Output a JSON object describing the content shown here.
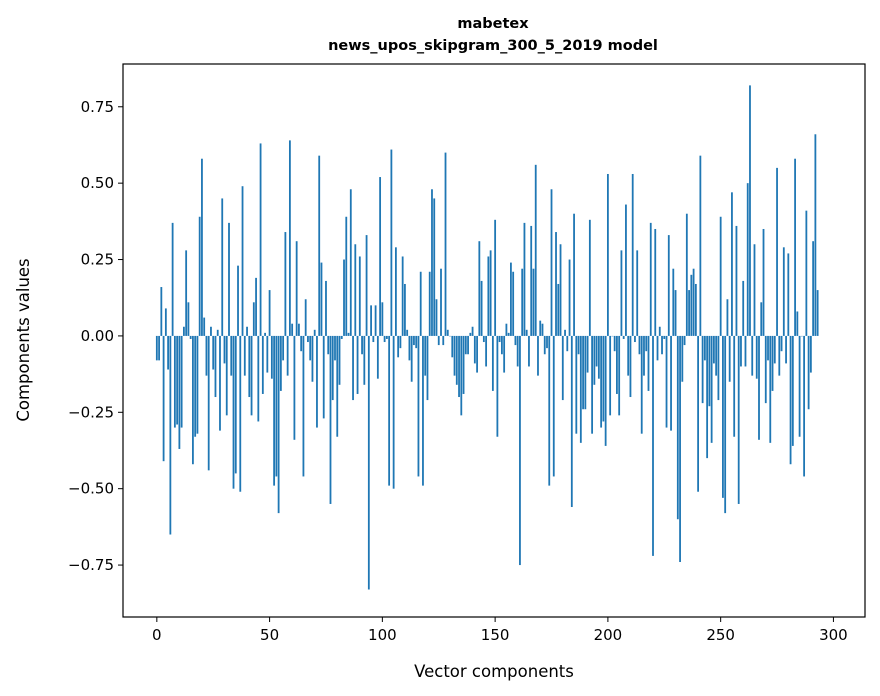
{
  "chart_data": {
    "type": "bar",
    "title": "mabetex",
    "subtitle": "news_upos_skipgram_300_5_2019 model",
    "xlabel": "Vector components",
    "ylabel": "Components values",
    "xlim": [
      -15,
      314
    ],
    "ylim": [
      -0.92,
      0.89
    ],
    "xticks": [
      0,
      50,
      100,
      150,
      200,
      250,
      300
    ],
    "yticks": [
      -0.75,
      -0.5,
      -0.25,
      0.0,
      0.25,
      0.5,
      0.75
    ],
    "ytick_labels": [
      "−0.75",
      "−0.50",
      "−0.25",
      "0.00",
      "0.25",
      "0.50",
      "0.75"
    ],
    "bar_color": "#1f77b4",
    "x_start": 0,
    "values": [
      -0.08,
      -0.08,
      0.16,
      -0.41,
      0.09,
      -0.11,
      -0.65,
      0.37,
      -0.3,
      -0.29,
      -0.37,
      -0.3,
      0.03,
      0.28,
      0.11,
      -0.01,
      -0.42,
      -0.33,
      -0.32,
      0.39,
      0.58,
      0.06,
      -0.13,
      -0.44,
      0.03,
      -0.11,
      -0.2,
      0.02,
      -0.31,
      0.45,
      -0.09,
      -0.26,
      0.37,
      -0.13,
      -0.5,
      -0.45,
      0.23,
      -0.51,
      0.49,
      -0.13,
      0.03,
      -0.2,
      -0.26,
      0.11,
      0.19,
      -0.28,
      0.63,
      -0.19,
      0.01,
      -0.12,
      0.15,
      -0.14,
      -0.49,
      -0.46,
      -0.58,
      -0.18,
      -0.08,
      0.34,
      -0.13,
      0.64,
      0.04,
      -0.34,
      0.31,
      0.04,
      -0.05,
      -0.46,
      0.12,
      -0.02,
      -0.08,
      -0.15,
      0.02,
      -0.3,
      0.59,
      0.24,
      -0.27,
      0.18,
      -0.06,
      -0.55,
      -0.21,
      -0.08,
      -0.33,
      -0.16,
      -0.01,
      0.25,
      0.39,
      0.01,
      0.48,
      -0.21,
      0.3,
      -0.19,
      0.26,
      -0.06,
      -0.16,
      0.33,
      -0.83,
      0.1,
      -0.02,
      0.1,
      -0.14,
      0.52,
      0.11,
      -0.02,
      -0.01,
      -0.49,
      0.61,
      -0.5,
      0.29,
      -0.07,
      -0.04,
      0.26,
      0.17,
      0.02,
      -0.08,
      -0.15,
      -0.03,
      -0.04,
      -0.46,
      0.21,
      -0.49,
      -0.13,
      -0.21,
      0.21,
      0.48,
      0.45,
      0.12,
      -0.03,
      0.22,
      -0.03,
      0.6,
      0.02,
      0.0,
      -0.07,
      -0.13,
      -0.16,
      -0.2,
      -0.26,
      -0.19,
      -0.06,
      -0.06,
      0.01,
      0.03,
      -0.09,
      -0.12,
      0.31,
      0.18,
      -0.02,
      -0.1,
      0.26,
      0.28,
      -0.18,
      0.38,
      -0.33,
      -0.02,
      -0.06,
      -0.12,
      0.04,
      0.01,
      0.24,
      0.21,
      -0.03,
      -0.1,
      -0.75,
      0.22,
      0.37,
      0.02,
      -0.1,
      0.36,
      0.22,
      0.56,
      -0.13,
      0.05,
      0.04,
      -0.06,
      -0.04,
      -0.49,
      0.48,
      -0.46,
      0.34,
      0.17,
      0.3,
      -0.21,
      0.02,
      -0.05,
      0.25,
      -0.56,
      0.4,
      -0.32,
      -0.06,
      -0.35,
      -0.24,
      -0.24,
      -0.12,
      0.38,
      -0.32,
      -0.16,
      -0.1,
      -0.14,
      -0.3,
      -0.28,
      -0.36,
      0.53,
      -0.26,
      0.0,
      -0.05,
      -0.19,
      -0.26,
      0.28,
      -0.01,
      0.43,
      -0.13,
      -0.2,
      0.53,
      -0.02,
      0.28,
      -0.06,
      -0.32,
      -0.13,
      -0.05,
      -0.18,
      0.37,
      -0.72,
      0.35,
      -0.08,
      0.03,
      -0.06,
      -0.01,
      -0.3,
      0.33,
      -0.31,
      0.22,
      0.15,
      -0.6,
      -0.74,
      -0.15,
      -0.03,
      0.4,
      0.15,
      0.2,
      0.22,
      0.17,
      -0.51,
      0.59,
      -0.22,
      -0.08,
      -0.4,
      -0.23,
      -0.35,
      -0.09,
      -0.13,
      -0.21,
      0.39,
      -0.53,
      -0.58,
      0.12,
      -0.15,
      0.47,
      -0.33,
      0.36,
      -0.55,
      -0.1,
      0.18,
      -0.1,
      0.5,
      0.82,
      -0.13,
      0.3,
      -0.14,
      -0.34,
      0.11,
      0.35,
      -0.22,
      -0.08,
      -0.35,
      -0.18,
      -0.09,
      0.55,
      -0.13,
      -0.05,
      0.29,
      -0.09,
      0.27,
      -0.42,
      -0.36,
      0.58,
      0.08,
      -0.33,
      0.0,
      -0.46,
      0.41,
      -0.24,
      -0.12,
      0.31,
      0.66,
      0.15
    ]
  }
}
